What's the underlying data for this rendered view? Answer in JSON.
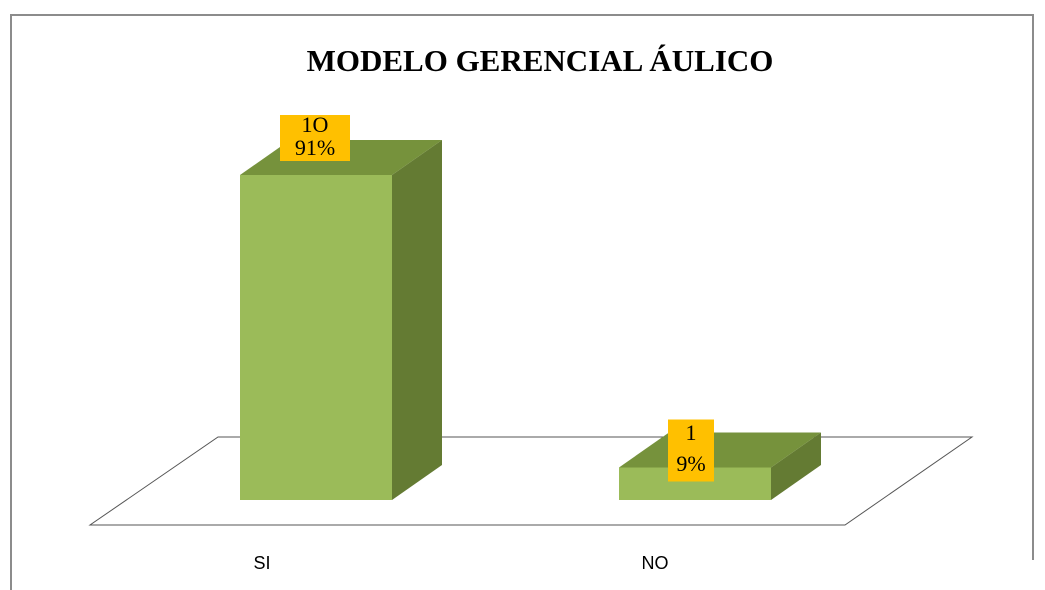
{
  "chart_data": {
    "type": "bar3d",
    "title": "MODELO GERENCIAL ÁULICO",
    "categories": [
      "SI",
      "NO"
    ],
    "values": [
      10,
      1
    ],
    "value_labels": [
      "1O",
      "1"
    ],
    "percents": [
      91,
      9
    ],
    "percent_labels": [
      "91%",
      "9%"
    ],
    "color": "#9bbb59",
    "side_color": "#647b33",
    "top_color": "#76923c",
    "label_color": "#ffc000"
  }
}
